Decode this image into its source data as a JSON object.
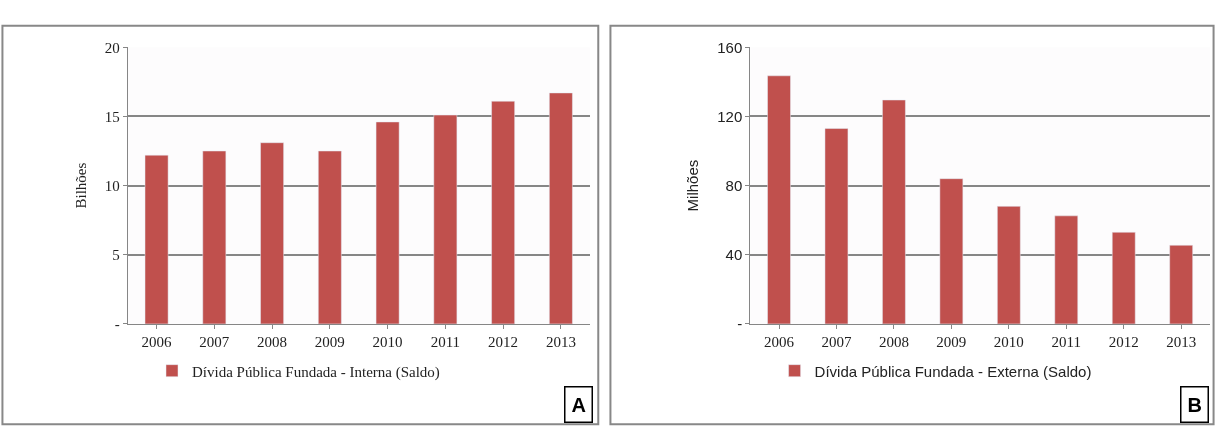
{
  "chart_data": [
    {
      "type": "bar",
      "categories": [
        "2006",
        "2007",
        "2008",
        "2009",
        "2010",
        "2011",
        "2012",
        "2013"
      ],
      "series": [
        {
          "name": "Dívida Pública Fundada - Interna (Saldo)",
          "color": "#c0504d",
          "values": [
            12.2,
            12.5,
            13.1,
            12.5,
            14.6,
            15.1,
            16.1,
            16.7
          ]
        }
      ],
      "ylabel": "Bilhões",
      "ylim": [
        0,
        20
      ],
      "yticks": [
        {
          "value": 0,
          "label": "-"
        },
        5,
        10,
        15,
        20
      ],
      "grid": "y",
      "legend": "bottom",
      "annotations": [
        "A"
      ]
    },
    {
      "type": "bar",
      "categories": [
        "2006",
        "2007",
        "2008",
        "2009",
        "2010",
        "2011",
        "2012",
        "2013"
      ],
      "series": [
        {
          "name": "Dívida Pública Fundada - Externa (Saldo)",
          "color": "#c0504d",
          "values": [
            143.5,
            113,
            129.5,
            84,
            68,
            62.5,
            53,
            45.5
          ]
        }
      ],
      "ylabel": "Milhões",
      "ylim": [
        0,
        160
      ],
      "yticks": [
        {
          "value": 0,
          "label": "-"
        },
        40,
        80,
        120,
        160
      ],
      "grid": "y",
      "legend": "bottom",
      "annotations": [
        "B"
      ]
    }
  ]
}
